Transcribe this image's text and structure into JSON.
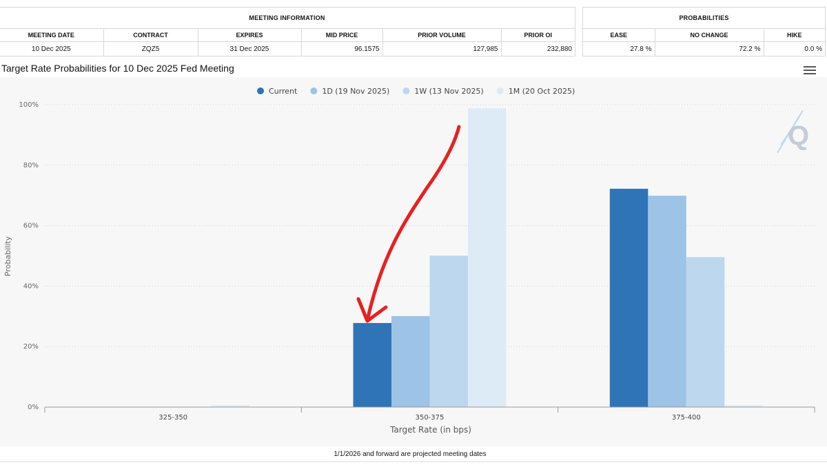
{
  "meeting_info": {
    "title": "MEETING INFORMATION",
    "headers": [
      "MEETING DATE",
      "CONTRACT",
      "EXPIRES",
      "MID PRICE",
      "PRIOR VOLUME",
      "PRIOR OI"
    ],
    "row": [
      "10 Dec 2025",
      "ZQZ5",
      "31 Dec 2025",
      "96.1575",
      "127,985",
      "232,880"
    ]
  },
  "probabilities": {
    "title": "PROBABILITIES",
    "headers": [
      "EASE",
      "NO CHANGE",
      "HIKE"
    ],
    "row": [
      "27.8 %",
      "72.2 %",
      "0.0 %"
    ]
  },
  "footer_note": "1/1/2026 and forward are projected meeting dates",
  "logo_text": "Q",
  "colors": {
    "current": "#2f74b7",
    "one_day": "#9dc3e6",
    "one_week": "#bdd7ee",
    "one_month": "#ddebf7",
    "annotation_arrow": "#e8201f"
  },
  "chart_data": {
    "type": "bar",
    "title": "Target Rate Probabilities for 10 Dec 2025 Fed Meeting",
    "xlabel": "Target Rate (in bps)",
    "ylabel": "Probability",
    "categories": [
      "325-350",
      "350-375",
      "375-400"
    ],
    "ylim": [
      0,
      100
    ],
    "yticks": [
      "0%",
      "20%",
      "40%",
      "60%",
      "80%",
      "100%"
    ],
    "grid": true,
    "legend_position": "top-center",
    "series": [
      {
        "name": "Current",
        "values": [
          0,
          27.8,
          72.2
        ]
      },
      {
        "name": "1D (19 Nov 2025)",
        "values": [
          0,
          30.1,
          69.9
        ]
      },
      {
        "name": "1W (13 Nov 2025)",
        "values": [
          0,
          50.1,
          49.6
        ]
      },
      {
        "name": "1M (20 Oct 2025)",
        "values": [
          0.6,
          98.8,
          0.6
        ]
      }
    ]
  }
}
